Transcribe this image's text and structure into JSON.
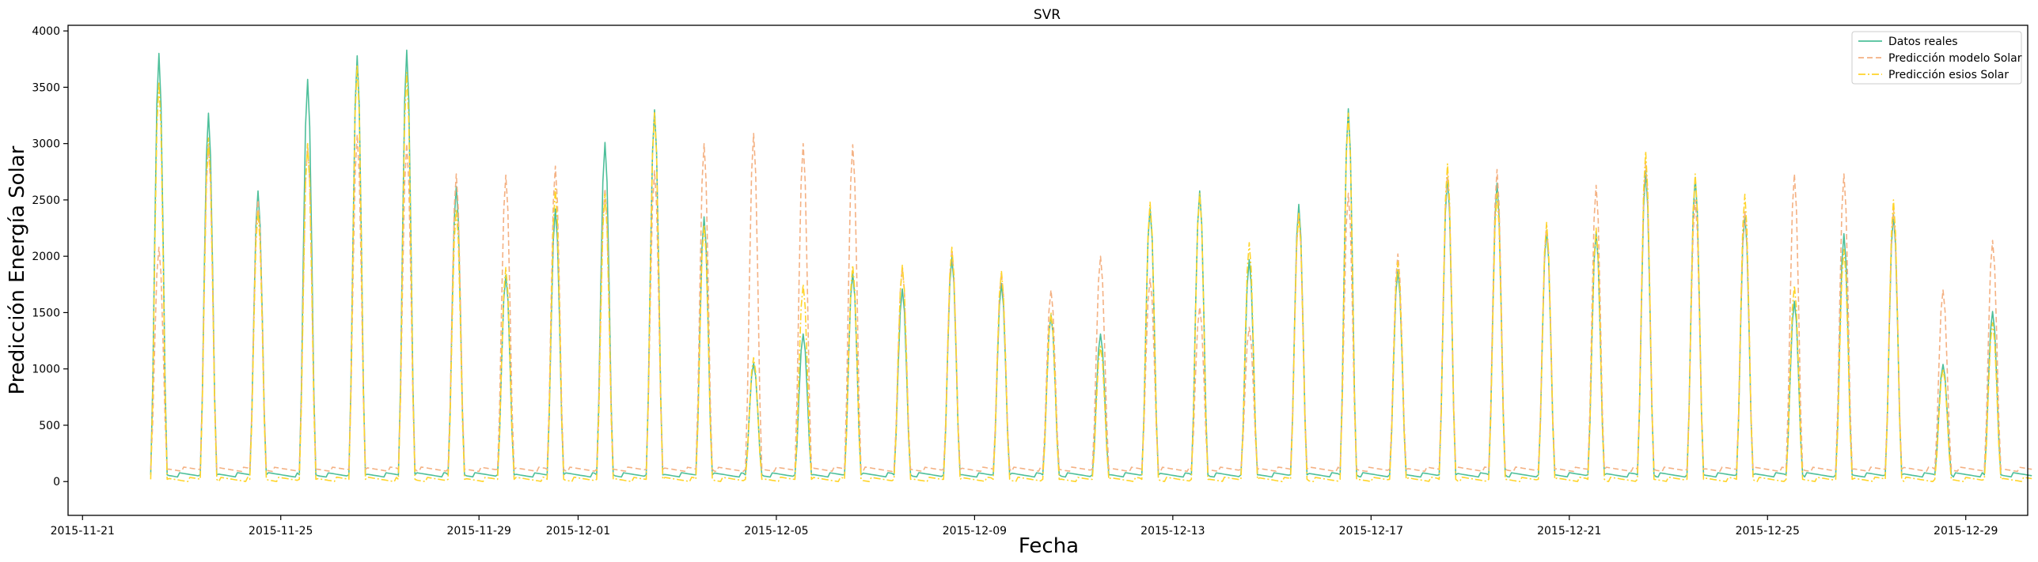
{
  "chart_data": {
    "type": "line",
    "title": "SVR",
    "xlabel": "Fecha",
    "ylabel": "Predicción Energía Solar",
    "xlim": [
      "2015-11-20T17:00",
      "2015-12-30T06:00"
    ],
    "ylim": [
      -300,
      4050
    ],
    "yticks": [
      0,
      500,
      1000,
      1500,
      2000,
      2500,
      3000,
      3500,
      4000
    ],
    "xticks": [
      "2015-11-21",
      "2015-11-25",
      "2015-11-29",
      "2015-12-01",
      "2015-12-05",
      "2015-12-09",
      "2015-12-13",
      "2015-12-17",
      "2015-12-21",
      "2015-12-25",
      "2015-12-29"
    ],
    "grid": false,
    "legend_position": "upper right",
    "x_start": "2015-11-22",
    "series": [
      {
        "name": "Datos reales",
        "color": "#4dbf9a",
        "style": "solid",
        "daily_peaks": [
          3800,
          3270,
          2580,
          3570,
          3780,
          3830,
          2620,
          1830,
          2420,
          3010,
          3300,
          2350,
          1050,
          1310,
          1850,
          1710,
          1990,
          1760,
          1480,
          1310,
          2430,
          2580,
          1970,
          2460,
          3310,
          1880,
          2700,
          2650,
          2230,
          2210,
          2760,
          2700,
          2370,
          1600,
          2200,
          2370,
          1040,
          1510
        ],
        "night_base": 60
      },
      {
        "name": "Predicción modelo Solar",
        "color": "#f4b183",
        "style": "dashed",
        "daily_peaks": [
          2080,
          2980,
          2500,
          3000,
          3080,
          3000,
          2730,
          2720,
          2800,
          2600,
          2760,
          3000,
          3090,
          3000,
          2990,
          1900,
          2060,
          1850,
          1700,
          2000,
          1800,
          1550,
          1370,
          2380,
          2560,
          2020,
          2750,
          2770,
          2280,
          2630,
          2840,
          2500,
          2400,
          2730,
          2730,
          2420,
          1700,
          2140
        ],
        "night_base": 110
      },
      {
        "name": "Predicción esios Solar",
        "color": "#ffd42a",
        "style": "dashdot",
        "daily_peaks": [
          3550,
          3050,
          2400,
          3000,
          3700,
          3630,
          2420,
          1900,
          2600,
          2550,
          3280,
          2280,
          1100,
          1750,
          1920,
          1920,
          2080,
          1870,
          1500,
          1200,
          2480,
          2560,
          2120,
          2380,
          3270,
          1950,
          2820,
          2560,
          2300,
          2250,
          2930,
          2730,
          2550,
          1740,
          2060,
          2500,
          1000,
          1410
        ],
        "night_base": 20
      }
    ]
  }
}
